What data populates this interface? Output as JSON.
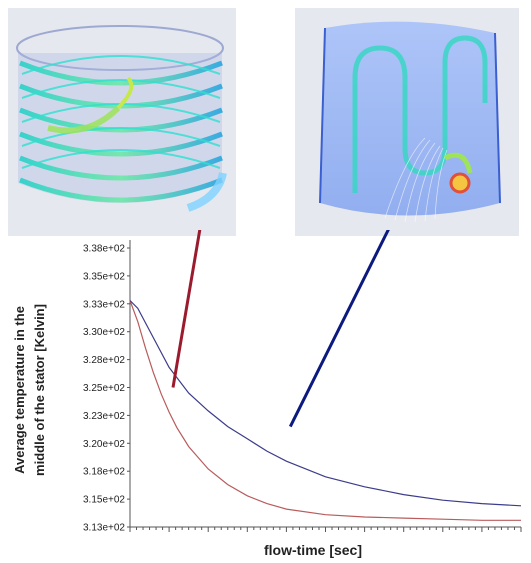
{
  "images": {
    "left": "helical-cooling-channel-streamlines-render",
    "right": "axial-cooling-channel-streamlines-render"
  },
  "chart_data": {
    "type": "line",
    "title": "",
    "xlabel": "flow-time [sec]",
    "ylabel_line1": "Average temperature in the",
    "ylabel_line2": "middle of the stator [Kelvin]",
    "ylim": [
      313,
      338
    ],
    "yticks": [
      "3.38e+02",
      "3.35e+02",
      "3.33e+02",
      "3.30e+02",
      "3.28e+02",
      "3.25e+02",
      "3.23e+02",
      "3.20e+02",
      "3.18e+02",
      "3.15e+02",
      "3.13e+02"
    ],
    "xlim": [
      0,
      1
    ],
    "grid": false,
    "legend": "none",
    "series": [
      {
        "color": "#b85c5c",
        "x": [
          0,
          0.02,
          0.04,
          0.06,
          0.08,
          0.1,
          0.12,
          0.15,
          0.2,
          0.25,
          0.3,
          0.35,
          0.4,
          0.5,
          0.6,
          0.7,
          0.8,
          0.9,
          1.0
        ],
        "y": [
          333.3,
          331.4,
          329.0,
          326.8,
          324.9,
          323.3,
          321.9,
          320.2,
          318.2,
          316.8,
          315.8,
          315.1,
          314.6,
          314.1,
          313.9,
          313.8,
          313.7,
          313.6,
          313.6
        ]
      },
      {
        "color": "#3c3c8c",
        "x": [
          0,
          0.02,
          0.05,
          0.1,
          0.15,
          0.2,
          0.25,
          0.3,
          0.35,
          0.4,
          0.5,
          0.6,
          0.7,
          0.8,
          0.9,
          1.0
        ],
        "y": [
          333.3,
          332.6,
          330.6,
          327.3,
          325.0,
          323.4,
          322.0,
          320.9,
          319.8,
          318.9,
          317.5,
          316.6,
          315.9,
          315.4,
          315.1,
          314.9
        ]
      }
    ],
    "annotations": [
      {
        "color": "#9b1b2e",
        "from": [
          0.19,
          342
        ],
        "to": [
          0.11,
          325.5
        ]
      },
      {
        "color": "#0c1a80",
        "from": [
          0.68,
          341
        ],
        "to": [
          0.41,
          322
        ]
      }
    ]
  }
}
